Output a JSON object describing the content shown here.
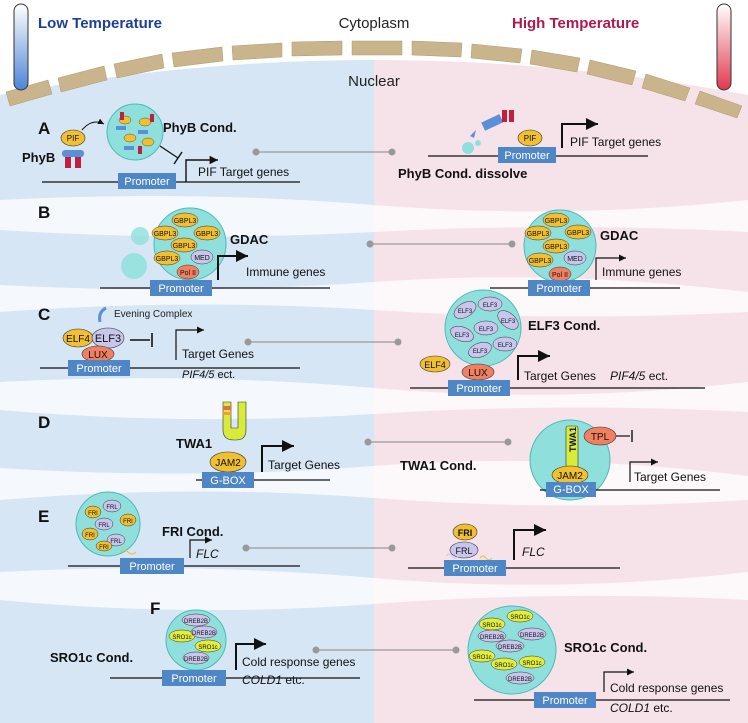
{
  "header": {
    "low_temperature": "Low Temperature",
    "high_temperature": "High Temperature",
    "cytoplasm": "Cytoplasm",
    "nuclear": "Nuclear"
  },
  "colors": {
    "low_title": "#1f3f95",
    "high_title": "#b0174f",
    "low_bg": "#d6e6f5",
    "high_bg": "#f6e3ea",
    "band_white": "#ffffff",
    "envelope": "#c9b48b",
    "promoter": "#4f86c6",
    "condensate": "#8fe0dc",
    "gbpl": "#f0c030",
    "pif": "#f0c030",
    "lux": "#f08060",
    "elf": "#c9c6ee",
    "twa1": "#d8ea3a",
    "sro1c": "#e3ee3a",
    "dreb2b": "#c9c6ee"
  },
  "panels": {
    "A": {
      "letter": "A",
      "phyb": "PhyB",
      "pif": "PIF",
      "cond": "PhyB Cond.",
      "promoter": "Promoter",
      "target_left": "PIF Target genes",
      "target_right": "PIF Target genes",
      "dissolve": "PhyB Cond. dissolve"
    },
    "B": {
      "letter": "B",
      "gdac": "GDAC",
      "gbpl": "GBPL3",
      "med": "MED",
      "pol": "Pol II",
      "promoter": "Promoter",
      "immune": "Immune genes"
    },
    "C": {
      "letter": "C",
      "evening": "Evening Complex",
      "elf4": "ELF4",
      "elf3": "ELF3",
      "lux": "LUX",
      "promoter": "Promoter",
      "target": "Target Genes",
      "pif45": "PIF4/5",
      "ect": " ect.",
      "cond": "ELF3 Cond."
    },
    "D": {
      "letter": "D",
      "twa1": "TWA1",
      "jam2": "JAM2",
      "gbox": "G-BOX",
      "target": "Target Genes",
      "cond": "TWA1 Cond.",
      "tpl": "TPL"
    },
    "E": {
      "letter": "E",
      "cond": "FRI Cond.",
      "fri": "FRI",
      "frl": "FRL",
      "promoter": "Promoter",
      "flc": "FLC"
    },
    "F": {
      "letter": "F",
      "cond": "SRO1c Cond.",
      "sro1c": "SRO1c",
      "dreb2b": "DREB2B",
      "promoter": "Promoter",
      "cold": "Cold response genes",
      "cold1": "COLD1",
      "etc": " etc."
    }
  }
}
